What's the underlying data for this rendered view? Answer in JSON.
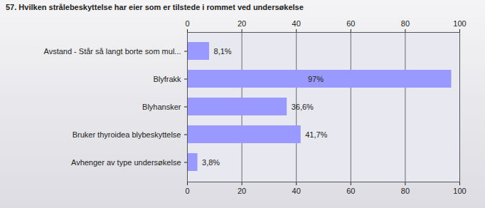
{
  "chart_data": {
    "type": "bar",
    "title": "57. Hvilken strålebeskyttelse har eier som er tilstede i rommet ved undersøkelse",
    "categories": [
      "Avstand - Står så langt borte som mul...",
      "Blyfrakk",
      "Blyhansker",
      "Bruker thyroidea blybeskyttelse",
      "Avhenger av type undersøkelse"
    ],
    "values": [
      8.1,
      97,
      36.6,
      41.7,
      3.8
    ],
    "value_labels": [
      "8,1%",
      "97%",
      "36,6%",
      "41,7%",
      "3,8%"
    ],
    "color": "#9999ff",
    "orientation": "horizontal",
    "data_labels": true,
    "grid": true,
    "xlim": [
      0,
      100
    ],
    "xticks": [
      0,
      20,
      40,
      60,
      80,
      100
    ]
  }
}
